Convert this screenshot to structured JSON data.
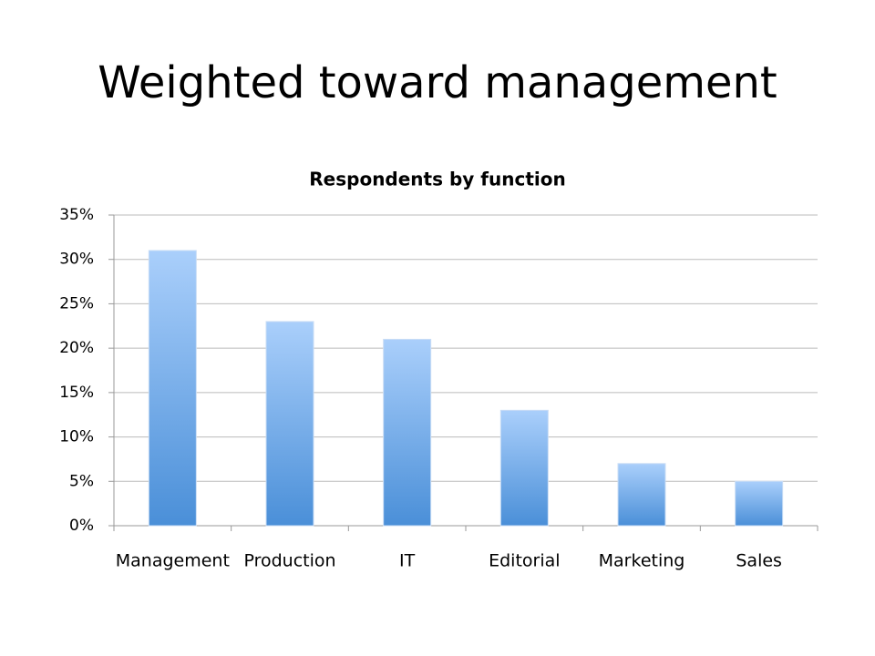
{
  "slide_title": "Weighted toward management",
  "chart_data": {
    "type": "bar",
    "title": "Respondents by function",
    "categories": [
      "Management",
      "Production",
      "IT",
      "Editorial",
      "Marketing",
      "Sales"
    ],
    "values": [
      31,
      23,
      21,
      13,
      7,
      5
    ],
    "gradient": [
      "#aacffb",
      "#4a8fd8"
    ],
    "ylim": [
      0,
      35
    ],
    "yticks": [
      {
        "value": 0,
        "label": "0%"
      },
      {
        "value": 5,
        "label": "5%"
      },
      {
        "value": 10,
        "label": "10%"
      },
      {
        "value": 15,
        "label": "15%"
      },
      {
        "value": 20,
        "label": "20%"
      },
      {
        "value": 25,
        "label": "25%"
      },
      {
        "value": 30,
        "label": "30%"
      },
      {
        "value": 35,
        "label": "35%"
      }
    ],
    "grid": true
  }
}
